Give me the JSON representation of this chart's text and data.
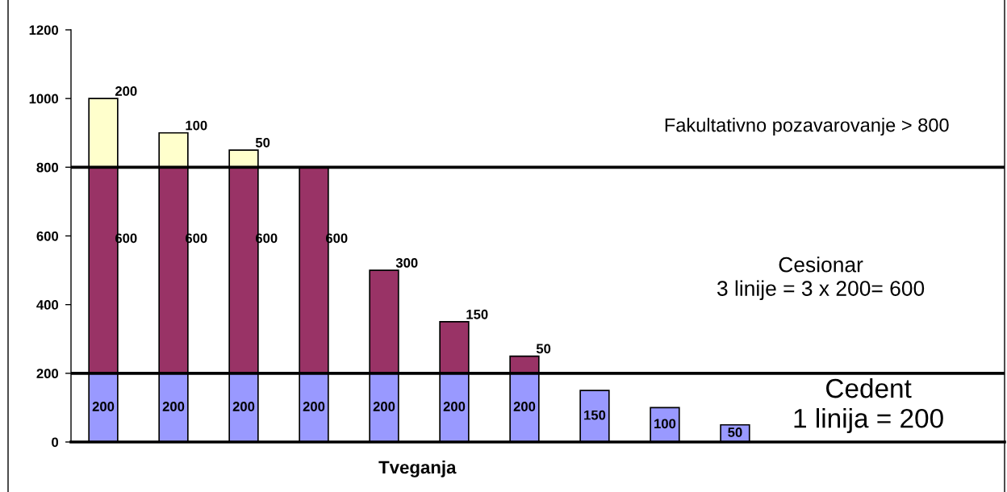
{
  "chart_data": {
    "type": "bar",
    "stacked": true,
    "xlabel": "Tveganja",
    "categories": [
      null,
      null,
      null,
      null,
      null,
      null,
      null,
      null,
      null,
      null
    ],
    "series": [
      {
        "color": "#9999ff",
        "values": [
          200,
          200,
          200,
          200,
          200,
          200,
          200,
          150,
          100,
          50
        ]
      },
      {
        "color": "#993366",
        "values": [
          600,
          600,
          600,
          600,
          300,
          150,
          50,
          null,
          null,
          null
        ]
      },
      {
        "color": "#ffffcc",
        "values": [
          200,
          100,
          50,
          null,
          null,
          null,
          null,
          null,
          null,
          null
        ]
      }
    ],
    "ylim": [
      0,
      1200
    ],
    "yticks": [
      0,
      200,
      400,
      600,
      800,
      1000,
      1200
    ],
    "tick_labels": "y",
    "data_labels": true,
    "ref_lines": [
      {
        "axis": "y",
        "value": 800,
        "color": "#000000"
      },
      {
        "axis": "y",
        "value": 200,
        "color": "#000000"
      }
    ],
    "annotations": [
      "Fakultativno pozavarovanje > 800",
      "Cesionar\n3 linije = 3 x 200= 600",
      "Cedent\n1 linija = 200"
    ]
  }
}
